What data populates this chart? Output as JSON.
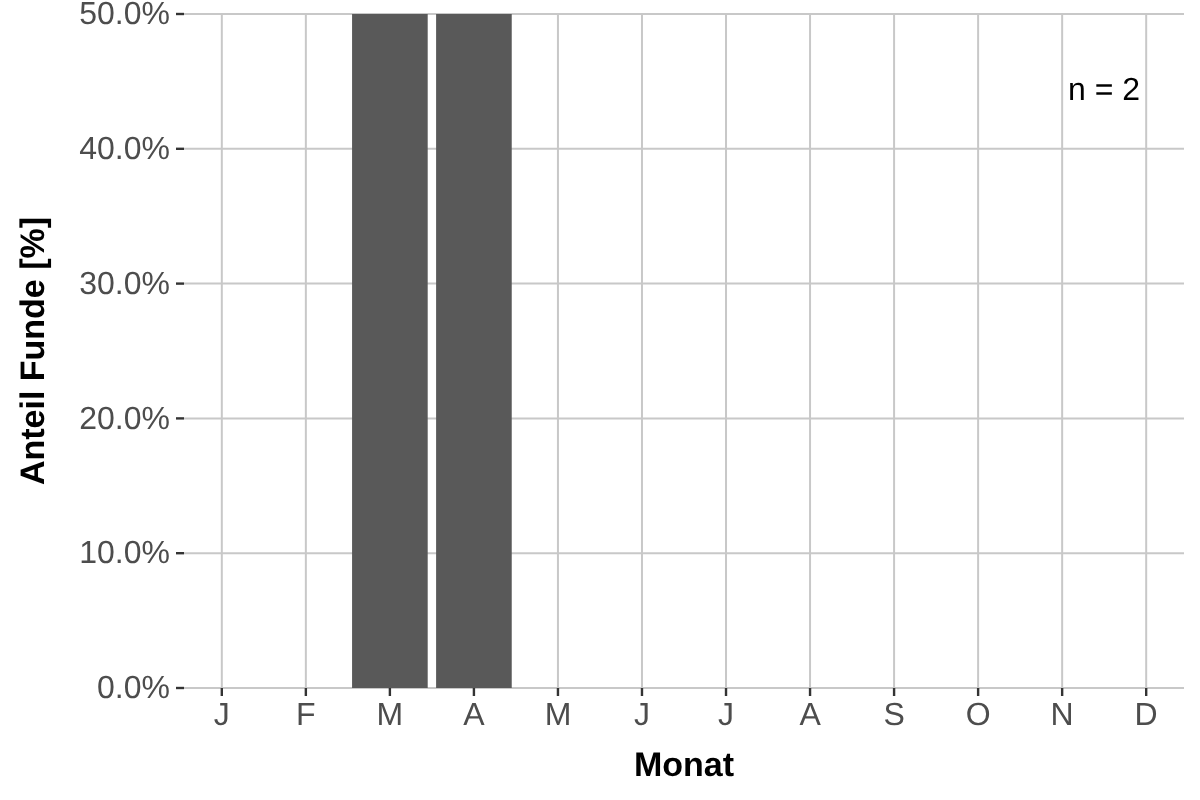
{
  "chart_data": {
    "type": "bar",
    "xlabel": "Monat",
    "ylabel": "Anteil Funde [%]",
    "categories": [
      "J",
      "F",
      "M",
      "A",
      "M",
      "J",
      "J",
      "A",
      "S",
      "O",
      "N",
      "D"
    ],
    "values": [
      0,
      0,
      50,
      50,
      0,
      0,
      0,
      0,
      0,
      0,
      0,
      0
    ],
    "color": "#595959",
    "ylim": [
      0,
      50
    ],
    "yticks": [
      {
        "value": 0,
        "label": "0.0%"
      },
      {
        "value": 10,
        "label": "10.0%"
      },
      {
        "value": 20,
        "label": "20.0%"
      },
      {
        "value": 30,
        "label": "30.0%"
      },
      {
        "value": 40,
        "label": "40.0%"
      },
      {
        "value": 50,
        "label": "50.0%"
      }
    ],
    "grid": true,
    "annotations": [
      "n = 2"
    ]
  }
}
